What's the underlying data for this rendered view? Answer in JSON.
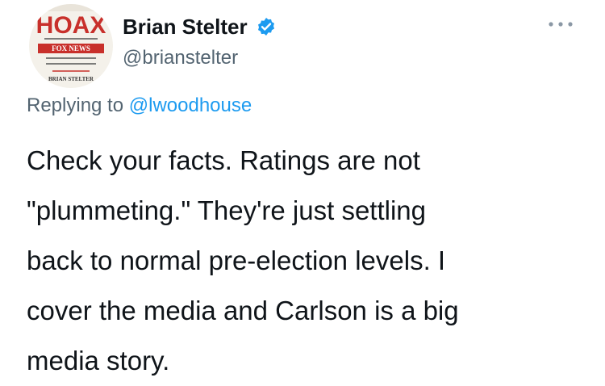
{
  "avatar": {
    "title": "HOAX",
    "subtitle": "FOX NEWS",
    "author": "BRIAN STELTER"
  },
  "user": {
    "name": "Brian Stelter",
    "handle": "@brianstelter"
  },
  "reply": {
    "prefix": "Replying to",
    "handle": "@lwoodhouse"
  },
  "tweet": {
    "lines": [
      "Check your facts. Ratings are not",
      "\"plummeting.\" They're just settling",
      "back to normal pre-election levels. I",
      "cover the media and Carlson is a big",
      "media story."
    ]
  }
}
